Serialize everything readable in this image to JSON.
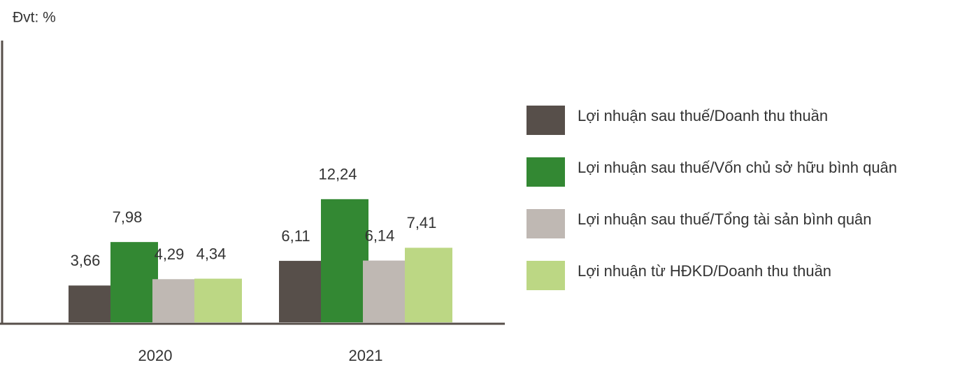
{
  "chart_data": {
    "type": "bar",
    "subtitle": "Đvt: %",
    "categories": [
      "2020",
      "2021"
    ],
    "series": [
      {
        "name": "Lợi nhuận sau thuế/Doanh thu thuần",
        "color": "#574f4a",
        "values": [
          3.66,
          6.11
        ],
        "value_labels": [
          "3,66",
          "6,11"
        ]
      },
      {
        "name": "Lợi nhuận sau thuế/Vốn chủ sở hữu bình quân",
        "color": "#338833",
        "values": [
          7.98,
          12.24
        ],
        "value_labels": [
          "7,98",
          "12,24"
        ]
      },
      {
        "name": "Lợi nhuận sau thuế/Tổng tài sản bình quân",
        "color": "#bfb8b3",
        "values": [
          4.29,
          6.14
        ],
        "value_labels": [
          "4,29",
          "6,14"
        ]
      },
      {
        "name": "Lợi nhuận từ HĐKD/Doanh thu thuần",
        "color": "#bcd784",
        "values": [
          4.34,
          7.41
        ],
        "value_labels": [
          "4,34",
          "7,41"
        ]
      }
    ],
    "ylim": [
      0,
      28
    ],
    "legend": "right"
  }
}
